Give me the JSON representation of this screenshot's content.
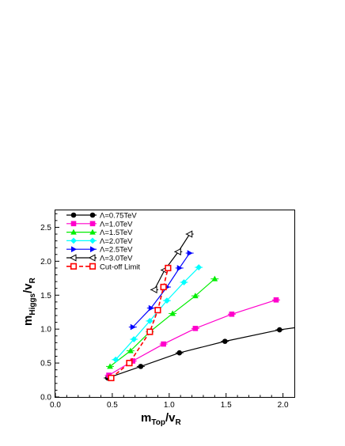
{
  "chart_data": {
    "type": "line",
    "title": "",
    "xlabel": {
      "main": "m",
      "sub": "Top",
      "rest": "/v",
      "sub2": "R"
    },
    "ylabel": {
      "main": "m",
      "sub": "Higgs",
      "rest": "/v",
      "sub2": "R"
    },
    "xlim": [
      0,
      2.1
    ],
    "ylim": [
      0,
      2.75
    ],
    "x_ticks": [
      0.0,
      0.5,
      1.0,
      1.5,
      2.0
    ],
    "x_tick_labels": [
      "0.0",
      "0.5",
      "1.0",
      "1.5",
      "2.0"
    ],
    "y_ticks": [
      0.0,
      0.5,
      1.0,
      1.5,
      2.0,
      2.5
    ],
    "y_tick_labels": [
      "0.0",
      "0.5",
      "1.0",
      "1.5",
      "2.0",
      "2.5"
    ],
    "grid": false,
    "legend_position": "top-left",
    "series": [
      {
        "name": "Λ=0.75TeV",
        "color": "#000000",
        "marker": "circle",
        "dashed": false,
        "x": [
          0.46,
          0.75,
          1.09,
          1.49,
          1.97,
          2.1
        ],
        "y": [
          0.28,
          0.45,
          0.65,
          0.82,
          0.99,
          1.02
        ],
        "marker_mask": [
          true,
          true,
          true,
          true,
          true,
          false
        ]
      },
      {
        "name": "Λ=1.0TeV",
        "color": "#ff00cc",
        "marker": "square",
        "dashed": false,
        "x": [
          0.47,
          0.68,
          0.95,
          1.23,
          1.55,
          1.94
        ],
        "y": [
          0.32,
          0.53,
          0.78,
          1.01,
          1.22,
          1.43
        ],
        "marker_mask": [
          true,
          true,
          true,
          true,
          true,
          true
        ]
      },
      {
        "name": "Λ=1.5TeV",
        "color": "#00ee00",
        "marker": "triangle-up",
        "dashed": false,
        "x": [
          0.48,
          0.66,
          0.83,
          1.03,
          1.23,
          1.4
        ],
        "y": [
          0.45,
          0.68,
          0.96,
          1.23,
          1.49,
          1.74
        ],
        "marker_mask": [
          true,
          true,
          true,
          true,
          true,
          true
        ]
      },
      {
        "name": "Λ=2.0TeV",
        "color": "#00ffff",
        "marker": "diamond",
        "dashed": false,
        "x": [
          0.53,
          0.69,
          0.83,
          0.98,
          1.13,
          1.26
        ],
        "y": [
          0.55,
          0.85,
          1.12,
          1.42,
          1.69,
          1.91
        ],
        "marker_mask": [
          true,
          true,
          true,
          true,
          true,
          true
        ]
      },
      {
        "name": "Λ=2.5TeV",
        "color": "#0000ff",
        "marker": "triangle-right",
        "dashed": false,
        "x": [
          0.68,
          0.84,
          0.98,
          1.09,
          1.18
        ],
        "y": [
          1.03,
          1.31,
          1.62,
          1.9,
          2.12
        ],
        "marker_mask": [
          true,
          true,
          true,
          true,
          true
        ]
      },
      {
        "name": "Λ=3.0TeV",
        "color": "#000000",
        "marker": "triangle-left-open",
        "dashed": false,
        "x": [
          0.87,
          0.96,
          1.08,
          1.18
        ],
        "y": [
          1.58,
          1.87,
          2.14,
          2.4
        ],
        "marker_mask": [
          true,
          true,
          true,
          true
        ]
      },
      {
        "name": "Cut-off Limit",
        "color": "#ff0000",
        "marker": "square-open",
        "dashed": true,
        "x": [
          0.49,
          0.65,
          0.83,
          0.9,
          0.95,
          0.99
        ],
        "y": [
          0.28,
          0.5,
          0.96,
          1.28,
          1.62,
          1.9
        ],
        "marker_mask": [
          true,
          true,
          true,
          true,
          true,
          true
        ]
      }
    ]
  }
}
